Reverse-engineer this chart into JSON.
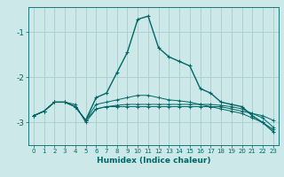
{
  "title": "",
  "xlabel": "Humidex (Indice chaleur)",
  "bg_color": "#cce8e8",
  "grid_color": "#aacccc",
  "line_color": "#006666",
  "x_values": [
    0,
    1,
    2,
    3,
    4,
    5,
    6,
    7,
    8,
    9,
    10,
    11,
    12,
    13,
    14,
    15,
    16,
    17,
    18,
    19,
    20,
    21,
    22,
    23
  ],
  "series1": [
    -2.85,
    -2.75,
    -2.55,
    -2.55,
    -2.65,
    -2.95,
    -2.45,
    -2.35,
    -1.9,
    -1.45,
    -0.72,
    -0.65,
    -1.35,
    -1.55,
    -1.65,
    -1.75,
    -2.25,
    -2.35,
    -2.55,
    -2.6,
    -2.65,
    -2.85,
    -3.0,
    -3.2
  ],
  "series2": [
    -2.85,
    -2.75,
    -2.55,
    -2.55,
    -2.6,
    -3.0,
    -2.7,
    -2.65,
    -2.65,
    -2.65,
    -2.65,
    -2.65,
    -2.65,
    -2.65,
    -2.65,
    -2.65,
    -2.65,
    -2.65,
    -2.65,
    -2.7,
    -2.75,
    -2.8,
    -2.85,
    -2.95
  ],
  "series3": [
    -2.85,
    -2.75,
    -2.55,
    -2.55,
    -2.65,
    -2.95,
    -2.7,
    -2.65,
    -2.62,
    -2.6,
    -2.6,
    -2.6,
    -2.6,
    -2.6,
    -2.6,
    -2.6,
    -2.6,
    -2.6,
    -2.62,
    -2.65,
    -2.7,
    -2.8,
    -2.9,
    -3.1
  ],
  "series4": [
    -2.85,
    -2.75,
    -2.55,
    -2.55,
    -2.65,
    -2.95,
    -2.6,
    -2.55,
    -2.5,
    -2.45,
    -2.4,
    -2.4,
    -2.45,
    -2.5,
    -2.52,
    -2.55,
    -2.6,
    -2.65,
    -2.7,
    -2.75,
    -2.8,
    -2.9,
    -3.0,
    -3.15
  ],
  "ylim": [
    -3.5,
    -0.45
  ],
  "yticks": [
    -3,
    -2,
    -1
  ],
  "xlim": [
    -0.5,
    23.5
  ]
}
